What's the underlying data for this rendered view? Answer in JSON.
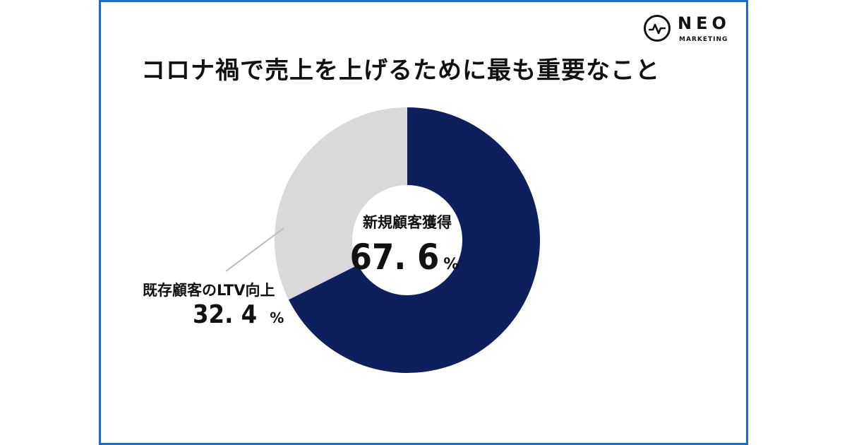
{
  "brand": {
    "name": "NEO",
    "sub": "MARKETING"
  },
  "colors": {
    "frame": "#1a6bd4",
    "primary": "#0d1f5c",
    "secondary": "#d9d9d9"
  },
  "chart_data": {
    "type": "pie",
    "title": "コロナ禍で売上を上げるために最も重要なこと",
    "slices": [
      {
        "label": "新規顧客獲得",
        "value": 67.6,
        "display": "67. 6",
        "unit": "%",
        "color": "#0d1f5c"
      },
      {
        "label": "既存顧客のLTV向上",
        "value": 32.4,
        "display": "32. 4",
        "unit": "%",
        "color": "#d9d9d9"
      }
    ]
  }
}
